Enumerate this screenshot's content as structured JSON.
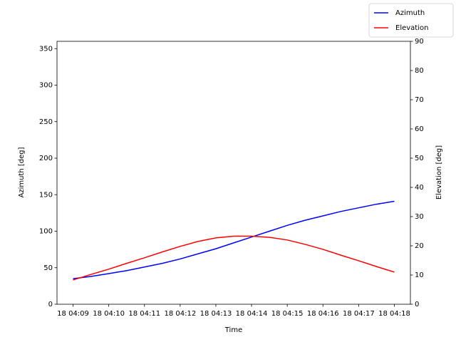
{
  "chart_data": {
    "type": "line",
    "x_label": "Time",
    "y_label": "Azimuth [deg]",
    "y2_label": "Elevation [deg]",
    "x": [
      9,
      9.5,
      10,
      10.5,
      11,
      11.5,
      12,
      12.5,
      13,
      13.5,
      14,
      14.5,
      15,
      15.5,
      16,
      16.5,
      17,
      17.5,
      18
    ],
    "series": [
      {
        "name": "Azimuth",
        "color": "#0000ff",
        "values": [
          35,
          38,
          42,
          46,
          51,
          56,
          62,
          69,
          76,
          84,
          92,
          100,
          108,
          115,
          121,
          127,
          132,
          137,
          141
        ]
      },
      {
        "name": "Elevation",
        "color": "#ff0000",
        "axis": "y2",
        "values": [
          8.3,
          10.2,
          12,
          14,
          15.9,
          17.9,
          19.8,
          21.5,
          22.7,
          23.3,
          23.3,
          22.9,
          22,
          20.5,
          18.8,
          16.8,
          14.9,
          12.9,
          11
        ]
      }
    ],
    "xlim": [
      8.55,
      18.45
    ],
    "xticks": [
      {
        "value": 9,
        "label": "18 04:09"
      },
      {
        "value": 10,
        "label": "18 04:10"
      },
      {
        "value": 11,
        "label": "18 04:11"
      },
      {
        "value": 12,
        "label": "18 04:12"
      },
      {
        "value": 13,
        "label": "18 04:13"
      },
      {
        "value": 14,
        "label": "18 04:14"
      },
      {
        "value": 15,
        "label": "18 04:15"
      },
      {
        "value": 16,
        "label": "18 04:16"
      },
      {
        "value": 17,
        "label": "18 04:17"
      },
      {
        "value": 18,
        "label": "18 04:18"
      }
    ],
    "ylim": [
      0,
      360
    ],
    "yticks": [
      0,
      50,
      100,
      150,
      200,
      250,
      300,
      350
    ],
    "y2lim": [
      0,
      90
    ],
    "y2ticks": [
      0,
      10,
      20,
      30,
      40,
      50,
      60,
      70,
      80,
      90
    ],
    "legend": "upper right"
  }
}
